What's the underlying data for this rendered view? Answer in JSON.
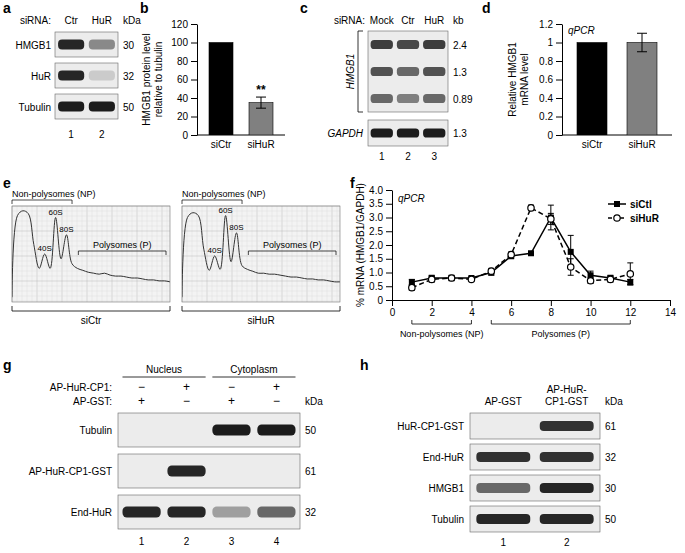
{
  "chart_data": [
    {
      "type": "bar",
      "panel": "b",
      "categories": [
        "siCtr",
        "siHuR"
      ],
      "values": [
        100,
        35
      ],
      "errors": [
        null,
        6
      ],
      "significance": [
        null,
        "**"
      ],
      "colors": [
        "#000000",
        "#808080"
      ],
      "ylim": [
        0,
        120
      ],
      "yticks": [
        0,
        20,
        40,
        60,
        80,
        100,
        120
      ],
      "y_label": [
        "HMGB1 protein level",
        "relative to tubulin"
      ]
    },
    {
      "type": "bar",
      "panel": "d",
      "annotations": [
        "qPCR"
      ],
      "categories": [
        "siCtr",
        "siHuR"
      ],
      "values": [
        1,
        1
      ],
      "errors": [
        null,
        0.1
      ],
      "colors": [
        "#000000",
        "#808080"
      ],
      "ylim": [
        0,
        1.2
      ],
      "yticks": [
        0,
        0.2,
        0.4,
        0.6,
        0.8,
        1,
        1.2
      ],
      "y_label": [
        "Relative HMGB1",
        "mRNA level"
      ]
    },
    {
      "type": "line",
      "panel": "f",
      "annotations": [
        "qPCR"
      ],
      "x": [
        1,
        2,
        3,
        4,
        5,
        6,
        7,
        8,
        9,
        10,
        11,
        12
      ],
      "series": [
        {
          "name": "siCtl",
          "color": "#000000",
          "marker": "square",
          "line_style": "solid",
          "values": [
            0.65,
            0.8,
            0.8,
            0.8,
            1.0,
            1.6,
            1.7,
            3.0,
            1.75,
            0.9,
            0.8,
            0.65
          ],
          "errors": [
            0.1,
            0.1,
            0.1,
            0.05,
            0.1,
            0.1,
            0.05,
            0.45,
            0.6,
            0.15,
            0.1,
            0.1
          ]
        },
        {
          "name": "siHuR",
          "color": "#000000",
          "marker": "circle",
          "line_style": "dashed",
          "values": [
            0.45,
            0.75,
            0.8,
            0.75,
            1.05,
            1.65,
            3.35,
            2.95,
            1.2,
            0.7,
            0.75,
            0.95
          ],
          "errors": [
            0.1,
            0.1,
            0.05,
            0.05,
            0.1,
            0.1,
            0.1,
            0.2,
            0.3,
            0.1,
            0.1,
            0.4
          ]
        }
      ],
      "xlim": [
        0,
        14
      ],
      "xticks": [
        0,
        2,
        4,
        6,
        8,
        10,
        12,
        14
      ],
      "ylim": [
        0,
        4
      ],
      "yticks": [
        0,
        0.5,
        {
          "value": 1,
          "label": "1.0"
        },
        1.5,
        {
          "value": 2,
          "label": "2.0"
        },
        2.5,
        {
          "value": 3,
          "label": "3.0"
        },
        3.5,
        {
          "value": 4,
          "label": "4.0"
        }
      ],
      "y_label": [
        "% mRNA (HMGB1/GAPDH)"
      ],
      "legend": "upper right",
      "regions": [
        {
          "text": "Non-polysomes (NP)",
          "x_range": [
            1,
            4
          ]
        },
        {
          "text": "Polysomes (P)",
          "x_range": [
            5,
            12
          ]
        }
      ]
    }
  ],
  "panels": {
    "a": {
      "letter": "a",
      "header_label": "siRNA:",
      "lanes": [
        "Ctr",
        "HuR"
      ],
      "unit": "kDa",
      "rows": [
        {
          "label": "HMGB1",
          "kda": 30,
          "bands": [
            0.9,
            0.45
          ]
        },
        {
          "label": "HuR",
          "kda": 32,
          "bands": [
            0.9,
            0.15
          ]
        },
        {
          "label": "Tubulin",
          "kda": 50,
          "bands": [
            0.95,
            0.95
          ]
        }
      ],
      "lane_numbers": [
        1,
        2
      ]
    },
    "c": {
      "letter": "c",
      "header_label": "siRNA:",
      "lanes": [
        "Mock",
        "Ctr",
        "HuR"
      ],
      "unit": "kb",
      "blots": [
        {
          "label": "HMGB1",
          "markers": [
            2.4,
            1.3,
            0.89
          ],
          "bands": [
            [
              0.8,
              0.75,
              0.8
            ],
            [
              0.7,
              0.6,
              0.7
            ],
            [
              0.6,
              0.5,
              0.6
            ]
          ]
        },
        {
          "label": "GAPDH",
          "markers": [
            1.3
          ],
          "bands": [
            [
              0.95,
              0.95,
              0.95
            ]
          ]
        }
      ],
      "lane_numbers": [
        1,
        2,
        3
      ]
    },
    "e": {
      "letter": "e",
      "ylim": [
        0,
        1
      ],
      "region_labels": [
        "Non-polysomes (NP)",
        "Polysomes (P)"
      ],
      "peak_labels": [
        "40S",
        "60S",
        "80S"
      ],
      "profiles": [
        {
          "name": "siCtr",
          "values": [
            0.05,
            0.9,
            0.95,
            0.92,
            0.6,
            0.35,
            0.5,
            0.35,
            0.88,
            0.45,
            0.7,
            0.4,
            0.35,
            0.33,
            0.31,
            0.3,
            0.29,
            0.3,
            0.28,
            0.27,
            0.27,
            0.26,
            0.25,
            0.25,
            0.24,
            0.23,
            0.23,
            0.22,
            0.22,
            0.21
          ]
        },
        {
          "name": "siHuR",
          "values": [
            0.05,
            0.88,
            0.93,
            0.9,
            0.55,
            0.33,
            0.48,
            0.34,
            0.9,
            0.42,
            0.72,
            0.38,
            0.34,
            0.32,
            0.3,
            0.3,
            0.29,
            0.29,
            0.28,
            0.27,
            0.26,
            0.26,
            0.25,
            0.24,
            0.24,
            0.23,
            0.23,
            0.22,
            0.21,
            0.21
          ]
        }
      ]
    },
    "g": {
      "letter": "g",
      "compartments": [
        "Nucleus",
        "Cytoplasm"
      ],
      "unit": "kDa",
      "conditions": [
        {
          "label": "AP-HuR-CP1:",
          "signs": [
            "−",
            "+",
            "−",
            "+"
          ]
        },
        {
          "label": "AP-GST:",
          "signs": [
            "+",
            "−",
            "+",
            "−"
          ]
        }
      ],
      "blots": [
        {
          "label": "Tubulin",
          "kda": 50,
          "bands": [
            0,
            0,
            0.95,
            0.95
          ]
        },
        {
          "label": "AP-HuR-CP1-GST",
          "kda": 61,
          "bands": [
            0,
            0.9,
            0,
            0
          ]
        },
        {
          "label": "End-HuR",
          "kda": 32,
          "bands": [
            0.9,
            0.9,
            0.35,
            0.6
          ]
        }
      ],
      "lane_numbers": [
        1,
        2,
        3,
        4
      ]
    },
    "h": {
      "letter": "h",
      "lanes": [
        [
          "AP-GST"
        ],
        [
          "AP-HuR-",
          "CP1-GST"
        ]
      ],
      "unit": "kDa",
      "blots": [
        {
          "label": "HuR-CP1-GST",
          "kda": 61,
          "bands": [
            0,
            0.85
          ]
        },
        {
          "label": "End-HuR",
          "kda": 32,
          "bands": [
            0.85,
            0.85
          ]
        },
        {
          "label": "HMGB1",
          "kda": 30,
          "bands": [
            0.6,
            0.9
          ]
        },
        {
          "label": "Tubulin",
          "kda": 50,
          "bands": [
            0.9,
            0.9
          ]
        }
      ],
      "lane_numbers": [
        1,
        2
      ]
    }
  }
}
